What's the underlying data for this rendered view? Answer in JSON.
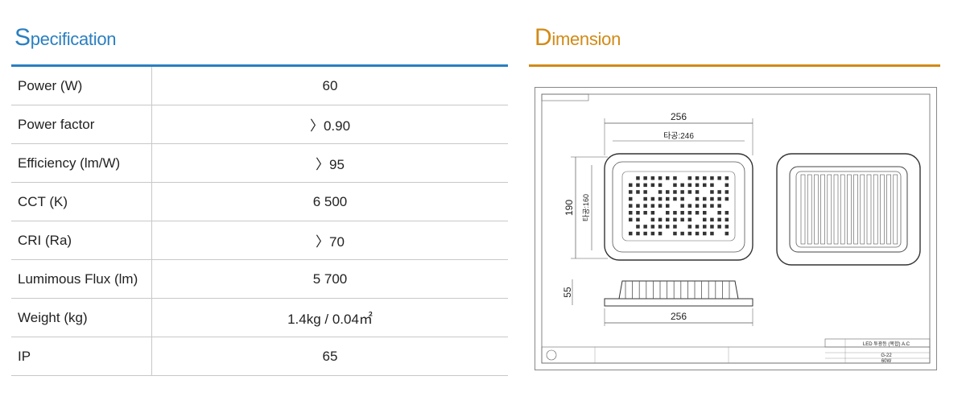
{
  "spec": {
    "title_cap": "S",
    "title_rest": "pecification",
    "rows": [
      {
        "label": "Power (W)",
        "value": "60"
      },
      {
        "label": "Power factor",
        "value": "〉0.90"
      },
      {
        "label": "Efficiency (lm/W)",
        "value": "〉95"
      },
      {
        "label": "CCT (K)",
        "value": "6 500"
      },
      {
        "label": "CRI (Ra)",
        "value": "〉70"
      },
      {
        "label": "Lumimous Flux (lm)",
        "value": "5 700"
      },
      {
        "label": "Weight (kg)",
        "value": "1.4kg / 0.04㎡"
      },
      {
        "label": "IP",
        "value": "65"
      }
    ]
  },
  "dimension": {
    "title_cap": "D",
    "title_rest": "imension",
    "drawing": {
      "width_label": "256",
      "hole_width_label": "타공:246",
      "height_label": "190",
      "hole_height_label": "타공:160",
      "depth_label": "55",
      "bottom_width_label": "256",
      "title_block": {
        "product": "LED 투광등 (복합) A.C",
        "model": "G-22",
        "spec": "60W"
      }
    }
  }
}
